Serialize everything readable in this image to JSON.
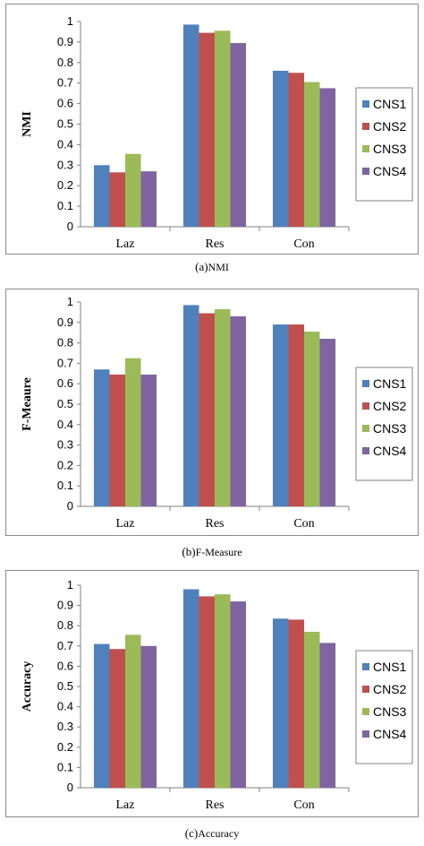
{
  "colors": {
    "CNS1": "#4f81bd",
    "CNS2": "#c0504d",
    "CNS3": "#9bbb59",
    "CNS4": "#8064a2"
  },
  "chart_data": [
    {
      "type": "bar",
      "caption_label": "(a)",
      "caption_text": "NMI",
      "ylabel": "NMI",
      "xlabel": "",
      "ylim": [
        0,
        1
      ],
      "yticks": [
        "0",
        "0.1",
        "0.2",
        "0.3",
        "0.4",
        "0.5",
        "0.6",
        "0.7",
        "0.8",
        "0.9",
        "1"
      ],
      "categories": [
        "Laz",
        "Res",
        "Con"
      ],
      "series": [
        {
          "name": "CNS1",
          "values": [
            0.3,
            0.985,
            0.76
          ]
        },
        {
          "name": "CNS2",
          "values": [
            0.265,
            0.945,
            0.75
          ]
        },
        {
          "name": "CNS3",
          "values": [
            0.355,
            0.955,
            0.705
          ]
        },
        {
          "name": "CNS4",
          "values": [
            0.27,
            0.895,
            0.675
          ]
        }
      ],
      "legend": "right",
      "grid": false
    },
    {
      "type": "bar",
      "caption_label": "(b)",
      "caption_text": "F-Measure",
      "ylabel": "F-Meaure",
      "xlabel": "",
      "ylim": [
        0,
        1
      ],
      "yticks": [
        "0",
        "0.1",
        "0.2",
        "0.3",
        "0.4",
        "0.5",
        "0.6",
        "0.7",
        "0.8",
        "0.9",
        "1"
      ],
      "categories": [
        "Laz",
        "Res",
        "Con"
      ],
      "series": [
        {
          "name": "CNS1",
          "values": [
            0.67,
            0.985,
            0.89
          ]
        },
        {
          "name": "CNS2",
          "values": [
            0.645,
            0.945,
            0.89
          ]
        },
        {
          "name": "CNS3",
          "values": [
            0.725,
            0.965,
            0.855
          ]
        },
        {
          "name": "CNS4",
          "values": [
            0.645,
            0.93,
            0.82
          ]
        }
      ],
      "legend": "right",
      "grid": false
    },
    {
      "type": "bar",
      "caption_label": "(c)",
      "caption_text": "Accuracy",
      "ylabel": "Accuracy",
      "xlabel": "",
      "ylim": [
        0,
        1
      ],
      "yticks": [
        "0",
        "0.1",
        "0.2",
        "0.3",
        "0.4",
        "0.5",
        "0.6",
        "0.7",
        "0.8",
        "0.9",
        "1"
      ],
      "categories": [
        "Laz",
        "Res",
        "Con"
      ],
      "series": [
        {
          "name": "CNS1",
          "values": [
            0.71,
            0.98,
            0.835
          ]
        },
        {
          "name": "CNS2",
          "values": [
            0.685,
            0.945,
            0.83
          ]
        },
        {
          "name": "CNS3",
          "values": [
            0.755,
            0.955,
            0.77
          ]
        },
        {
          "name": "CNS4",
          "values": [
            0.7,
            0.92,
            0.715
          ]
        }
      ],
      "legend": "right",
      "grid": false
    }
  ]
}
